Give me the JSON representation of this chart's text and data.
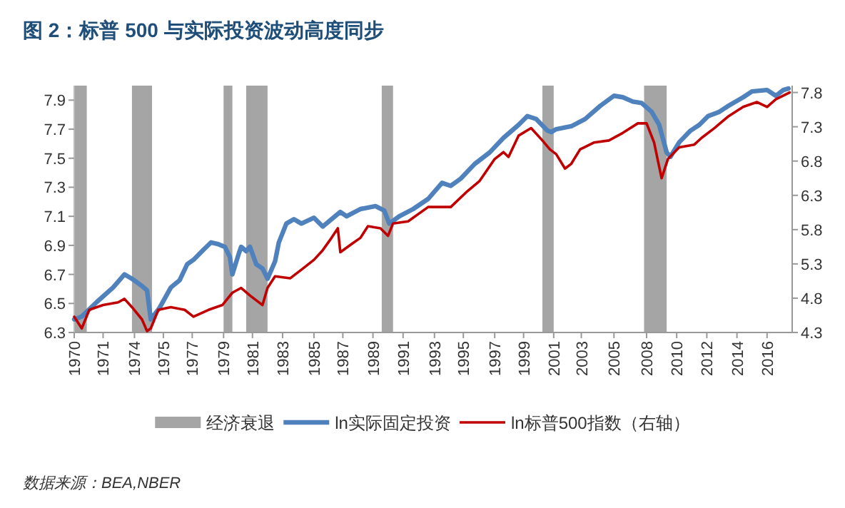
{
  "chart_data": {
    "type": "line",
    "title": "图 2：标普 500 与实际投资波动高度同步",
    "xlim": [
      "1970-01",
      "2017-09"
    ],
    "xticks": [
      {
        "value": "1970-01",
        "label": "1970"
      },
      {
        "value": "1971-12",
        "label": "1971"
      },
      {
        "value": "1974-01",
        "label": "1974"
      },
      {
        "value": "1975-12",
        "label": "1975"
      },
      {
        "value": "1977-11",
        "label": "1977"
      },
      {
        "value": "1979-12",
        "label": "1979"
      },
      {
        "value": "1981-11",
        "label": "1981"
      },
      {
        "value": "1983-11",
        "label": "1983"
      },
      {
        "value": "1985-12",
        "label": "1985"
      },
      {
        "value": "1987-11",
        "label": "1987"
      },
      {
        "value": "1989-11",
        "label": "1989"
      },
      {
        "value": "1991-11",
        "label": "1991"
      },
      {
        "value": "1993-12",
        "label": "1993"
      },
      {
        "value": "1995-11",
        "label": "1995"
      },
      {
        "value": "1997-12",
        "label": "1997"
      },
      {
        "value": "1999-11",
        "label": "1999"
      },
      {
        "value": "2001-11",
        "label": "2001"
      },
      {
        "value": "2003-09",
        "label": "2003"
      },
      {
        "value": "2005-11",
        "label": "2005"
      },
      {
        "value": "2008-01",
        "label": "2008"
      },
      {
        "value": "2010-01",
        "label": "2010"
      },
      {
        "value": "2012-01",
        "label": "2012"
      },
      {
        "value": "2014-01",
        "label": "2014"
      },
      {
        "value": "2016-01",
        "label": "2016"
      }
    ],
    "ylim": [
      6.3,
      8.0
    ],
    "yticks": [
      6.3,
      6.5,
      6.7,
      6.9,
      7.1,
      7.3,
      7.5,
      7.7,
      7.9
    ],
    "y2lim": [
      4.3,
      7.9
    ],
    "y2ticks": [
      4.3,
      4.8,
      5.3,
      5.8,
      6.3,
      6.8,
      7.3,
      7.8
    ],
    "series": [
      {
        "name": "ln实际固定投资",
        "color": "#4f81bd",
        "x": [
          "1970-01",
          "1970-07",
          "1971-07",
          "1972-08",
          "1973-05",
          "1973-11",
          "1974-07",
          "1974-11",
          "1975-02",
          "1975-09",
          "1976-06",
          "1977-01",
          "1977-07",
          "1977-12",
          "1978-08",
          "1979-02",
          "1979-07",
          "1980-01",
          "1980-05",
          "1980-07",
          "1980-12",
          "1981-02",
          "1981-06",
          "1981-09",
          "1982-02",
          "1982-07",
          "1982-11",
          "1983-05",
          "1983-08",
          "1984-02",
          "1984-08",
          "1985-02",
          "1985-12",
          "1986-07",
          "1987-02",
          "1987-09",
          "1988-02",
          "1989-01",
          "1990-01",
          "1990-08",
          "1990-12",
          "1991-08",
          "1992-07",
          "1993-07",
          "1994-06",
          "1995-01",
          "1995-09",
          "1996-08",
          "1997-08",
          "1998-07",
          "1999-07",
          "2000-02",
          "2000-09",
          "2001-06",
          "2001-09",
          "2002-01",
          "2003-01",
          "2003-12",
          "2004-12",
          "2005-11",
          "2006-06",
          "2007-02",
          "2007-09",
          "2008-05",
          "2008-11",
          "2009-05",
          "2009-08",
          "2010-03",
          "2010-12",
          "2011-07",
          "2012-02",
          "2012-11",
          "2013-06",
          "2014-06",
          "2015-01",
          "2016-01",
          "2016-08",
          "2017-02",
          "2017-06"
        ],
        "values": [
          6.39,
          6.41,
          6.51,
          6.61,
          6.7,
          6.67,
          6.62,
          6.59,
          6.39,
          6.47,
          6.61,
          6.66,
          6.77,
          6.8,
          6.87,
          6.92,
          6.91,
          6.89,
          6.82,
          6.7,
          6.84,
          6.89,
          6.86,
          6.89,
          6.77,
          6.74,
          6.67,
          6.79,
          6.92,
          7.05,
          7.08,
          7.05,
          7.09,
          7.03,
          7.08,
          7.13,
          7.1,
          7.15,
          7.17,
          7.14,
          7.05,
          7.1,
          7.15,
          7.22,
          7.33,
          7.31,
          7.36,
          7.46,
          7.54,
          7.64,
          7.73,
          7.79,
          7.77,
          7.69,
          7.68,
          7.7,
          7.72,
          7.77,
          7.86,
          7.93,
          7.92,
          7.89,
          7.88,
          7.82,
          7.73,
          7.54,
          7.51,
          7.61,
          7.69,
          7.73,
          7.79,
          7.82,
          7.86,
          7.92,
          7.96,
          7.97,
          7.93,
          7.97,
          7.98
        ]
      },
      {
        "name": "ln标普500指数（右轴）",
        "color": "#c00000",
        "axis": "y2",
        "x": [
          "1970-01",
          "1970-07",
          "1971-01",
          "1971-07",
          "1971-12",
          "1972-12",
          "1973-05",
          "1973-11",
          "1974-07",
          "1974-11",
          "1975-02",
          "1975-08",
          "1976-06",
          "1977-05",
          "1977-12",
          "1978-12",
          "1979-11",
          "1980-07",
          "1981-02",
          "1981-09",
          "1982-07",
          "1982-11",
          "1983-05",
          "1984-05",
          "1985-03",
          "1985-12",
          "1986-07",
          "1987-02",
          "1987-07",
          "1987-09",
          "1988-06",
          "1989-01",
          "1989-07",
          "1990-05",
          "1990-11",
          "1991-03",
          "1992-03",
          "1993-07",
          "1995-01",
          "1996-01",
          "1996-12",
          "1997-12",
          "1998-07",
          "1998-11",
          "1999-07",
          "2000-05",
          "2001-02",
          "2001-08",
          "2002-01",
          "2002-08",
          "2003-01",
          "2003-08",
          "2004-07",
          "2005-07",
          "2006-06",
          "2007-06",
          "2008-01",
          "2008-07",
          "2008-11",
          "2009-01",
          "2009-06",
          "2010-03",
          "2011-03",
          "2011-09",
          "2012-07",
          "2013-06",
          "2014-06",
          "2015-05",
          "2016-01",
          "2016-08",
          "2017-07"
        ],
        "values": [
          4.53,
          4.36,
          4.63,
          4.67,
          4.7,
          4.74,
          4.79,
          4.67,
          4.49,
          4.32,
          4.36,
          4.63,
          4.67,
          4.63,
          4.53,
          4.63,
          4.7,
          4.88,
          4.95,
          4.84,
          4.7,
          4.95,
          5.12,
          5.09,
          5.23,
          5.36,
          5.5,
          5.68,
          5.82,
          5.47,
          5.59,
          5.68,
          5.85,
          5.82,
          5.71,
          5.89,
          5.92,
          6.13,
          6.13,
          6.34,
          6.51,
          6.83,
          6.93,
          6.86,
          7.17,
          7.28,
          7.1,
          6.97,
          6.9,
          6.69,
          6.76,
          6.97,
          7.07,
          7.1,
          7.21,
          7.35,
          7.35,
          7.07,
          6.72,
          6.55,
          6.83,
          7.0,
          7.04,
          7.14,
          7.28,
          7.45,
          7.59,
          7.66,
          7.59,
          7.7,
          7.8
        ]
      }
    ],
    "bands": [
      {
        "axis": "x",
        "from": "1970-01",
        "to": "1970-11",
        "label": "经济衰退",
        "color": "#a5a5a5"
      },
      {
        "axis": "x",
        "from": "1973-11",
        "to": "1975-03",
        "color": "#a5a5a5"
      },
      {
        "axis": "x",
        "from": "1979-12",
        "to": "1980-07",
        "color": "#a5a5a5"
      },
      {
        "axis": "x",
        "from": "1981-06",
        "to": "1982-11",
        "color": "#a5a5a5"
      },
      {
        "axis": "x",
        "from": "1990-06",
        "to": "1991-03",
        "color": "#a5a5a5"
      },
      {
        "axis": "x",
        "from": "2001-02",
        "to": "2001-11",
        "color": "#a5a5a5"
      },
      {
        "axis": "x",
        "from": "2007-11",
        "to": "2009-05",
        "color": "#a5a5a5"
      }
    ],
    "legend": "bottom",
    "annotations": [
      "数据来源：BEA,NBER"
    ]
  }
}
